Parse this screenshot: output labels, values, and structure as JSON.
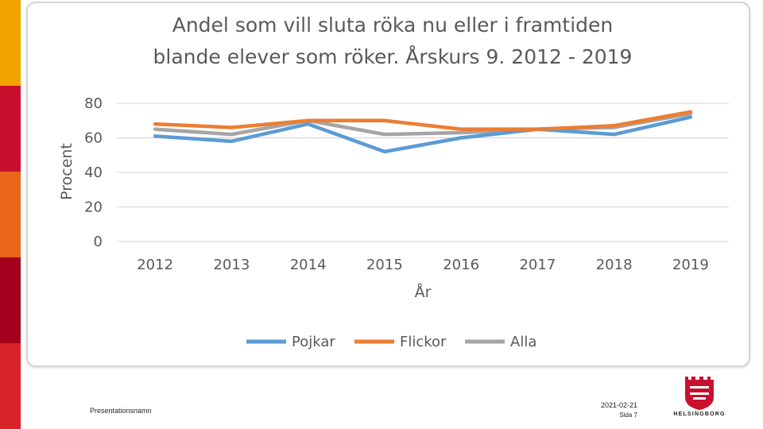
{
  "sidebar": {
    "stripe_colors": [
      "#f2a400",
      "#c8102e",
      "#e8651a",
      "#a3001e",
      "#d8232a"
    ]
  },
  "chart_data": {
    "type": "line",
    "title": [
      "Andel som vill sluta röka nu eller i framtiden",
      "blande elever som röker. Årskurs 9. 2012 - 2019"
    ],
    "xlabel": "År",
    "ylabel": "Procent",
    "ylim": [
      0,
      80
    ],
    "yticks": [
      "0",
      "20",
      "40",
      "60",
      "80"
    ],
    "grid": true,
    "legend": "bottom",
    "categories": [
      "2012",
      "2013",
      "2014",
      "2015",
      "2016",
      "2017",
      "2018",
      "2019"
    ],
    "series": [
      {
        "name": "Pojkar",
        "color": "#5b9bd5",
        "values": [
          61,
          58,
          68,
          52,
          60,
          65,
          62,
          72
        ]
      },
      {
        "name": "Flickor",
        "color": "#ed7d31",
        "values": [
          68,
          66,
          70,
          70,
          65,
          65,
          67,
          75
        ]
      },
      {
        "name": "Alla",
        "color": "#a5a5a5",
        "values": [
          65,
          62,
          70,
          62,
          63,
          65,
          66,
          74
        ]
      }
    ]
  },
  "footer": {
    "presentation_name": "Presentationsnamn",
    "date": "2021-02-21",
    "page": "Sida 7"
  },
  "logo": {
    "text": "HELSINGBORG",
    "icon": "helsingborg-crest-icon",
    "color": "#c8102e"
  }
}
